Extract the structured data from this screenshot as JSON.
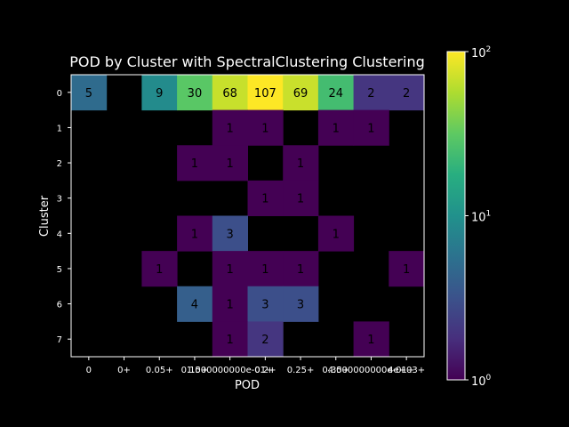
{
  "chart_data": {
    "type": "heatmap",
    "title": "POD by Cluster with SpectralClustering Clustering",
    "xlabel": "POD",
    "ylabel": "Cluster",
    "x_tick_labels": [
      "0",
      "0+",
      "0.05+",
      "0.15+",
      "1.000000000e-01+",
      "0.2+",
      "0.25+",
      "0.35+",
      "4.000000000e-01+",
      "4e+03+"
    ],
    "y_tick_labels": [
      "0",
      "1",
      "2",
      "3",
      "4",
      "5",
      "6",
      "7"
    ],
    "values": [
      [
        5,
        0,
        9,
        30,
        68,
        107,
        69,
        24,
        2,
        2
      ],
      [
        0,
        0,
        0,
        0,
        1,
        1,
        0,
        1,
        1,
        0
      ],
      [
        0,
        0,
        0,
        1,
        1,
        0,
        1,
        0,
        0,
        0
      ],
      [
        0,
        0,
        0,
        0,
        0,
        1,
        1,
        0,
        0,
        0
      ],
      [
        0,
        0,
        0,
        1,
        3,
        0,
        0,
        1,
        0,
        0
      ],
      [
        0,
        0,
        1,
        0,
        1,
        1,
        1,
        0,
        0,
        1
      ],
      [
        0,
        0,
        0,
        4,
        1,
        3,
        3,
        0,
        0,
        0
      ],
      [
        0,
        0,
        0,
        0,
        1,
        2,
        0,
        0,
        1,
        0
      ]
    ],
    "color_scale": "log",
    "colormap": "viridis",
    "colorbar_range": [
      1,
      100
    ],
    "colorbar_ticks": [
      {
        "base": "10",
        "exp": "0"
      },
      {
        "base": "10",
        "exp": "1"
      },
      {
        "base": "10",
        "exp": "2"
      }
    ],
    "empty_color": "#000000",
    "background": "#000000",
    "text_color": "#ffffff",
    "grid": false
  }
}
